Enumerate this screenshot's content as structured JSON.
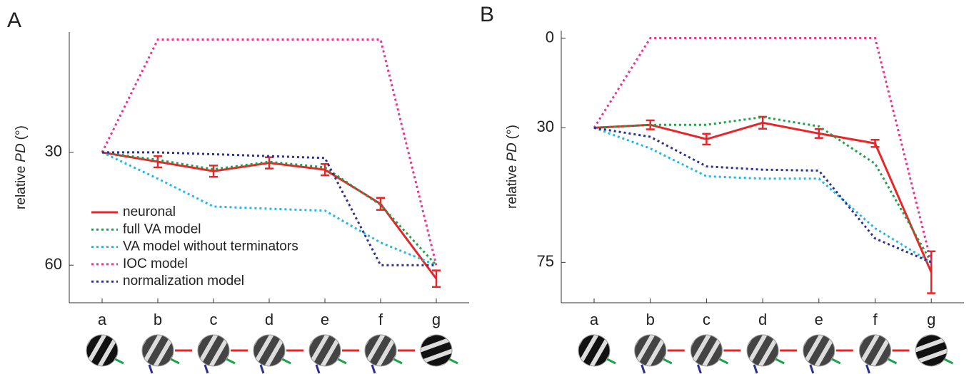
{
  "chart_data": [
    {
      "type": "line",
      "panel_label": "A",
      "ylabel_parts": [
        "relative",
        "PD",
        "(°)"
      ],
      "categories": [
        "a",
        "b",
        "c",
        "d",
        "e",
        "f",
        "g"
      ],
      "ylim": [
        -2,
        70
      ],
      "yticks": [
        30,
        60
      ],
      "y_inverted": true,
      "legend": "lower-left",
      "series": [
        {
          "name": "neuronal",
          "color": "#e8262a",
          "style": "solid",
          "values": [
            30,
            32.5,
            35,
            32.8,
            34.6,
            43.7,
            63.6
          ],
          "errors": [
            0,
            1.5,
            1.5,
            1.5,
            1.5,
            1.6,
            2.2
          ]
        },
        {
          "name": "full VA model",
          "color": "#1fa04a",
          "style": "dotted",
          "values": [
            30,
            32,
            34.5,
            32.5,
            34,
            44,
            60
          ]
        },
        {
          "name": "VA model without terminators",
          "color": "#22b8e6",
          "style": "dotted",
          "values": [
            30,
            37,
            44.4,
            45,
            45.5,
            54,
            60
          ]
        },
        {
          "name": "IOC model",
          "color": "#e8338f",
          "style": "dotted",
          "values": [
            30,
            0,
            0,
            0,
            0,
            0,
            60
          ]
        },
        {
          "name": "normalization model",
          "color": "#2b3190",
          "style": "dotted",
          "values": [
            30,
            30,
            30.5,
            31,
            31.5,
            60,
            60
          ]
        }
      ]
    },
    {
      "type": "line",
      "panel_label": "B",
      "ylabel_parts": [
        "relative",
        "PD",
        "(°)"
      ],
      "categories": [
        "a",
        "b",
        "c",
        "d",
        "e",
        "f",
        "g"
      ],
      "ylim": [
        -2.5,
        88.5
      ],
      "yticks": [
        0,
        30,
        75
      ],
      "y_inverted": true,
      "series": [
        {
          "color": "#e8262a",
          "style": "solid",
          "values": [
            30,
            29,
            33.8,
            28.3,
            31.9,
            35.2,
            78.3
          ],
          "errors": [
            0,
            1.5,
            1.8,
            2,
            1.5,
            1.2,
            7
          ]
        },
        {
          "color": "#1fa04a",
          "style": "dotted",
          "values": [
            30,
            29,
            29,
            26.4,
            29.5,
            42,
            75
          ]
        },
        {
          "color": "#22b8e6",
          "style": "dotted",
          "values": [
            30,
            36.9,
            46.2,
            47,
            47,
            63.6,
            75
          ]
        },
        {
          "color": "#e8338f",
          "style": "dotted",
          "values": [
            30,
            0,
            0,
            0,
            0,
            0,
            75
          ]
        },
        {
          "color": "#2b3190",
          "style": "dotted",
          "values": [
            30,
            33,
            42.9,
            44,
            44.3,
            67,
            75
          ]
        }
      ]
    }
  ]
}
